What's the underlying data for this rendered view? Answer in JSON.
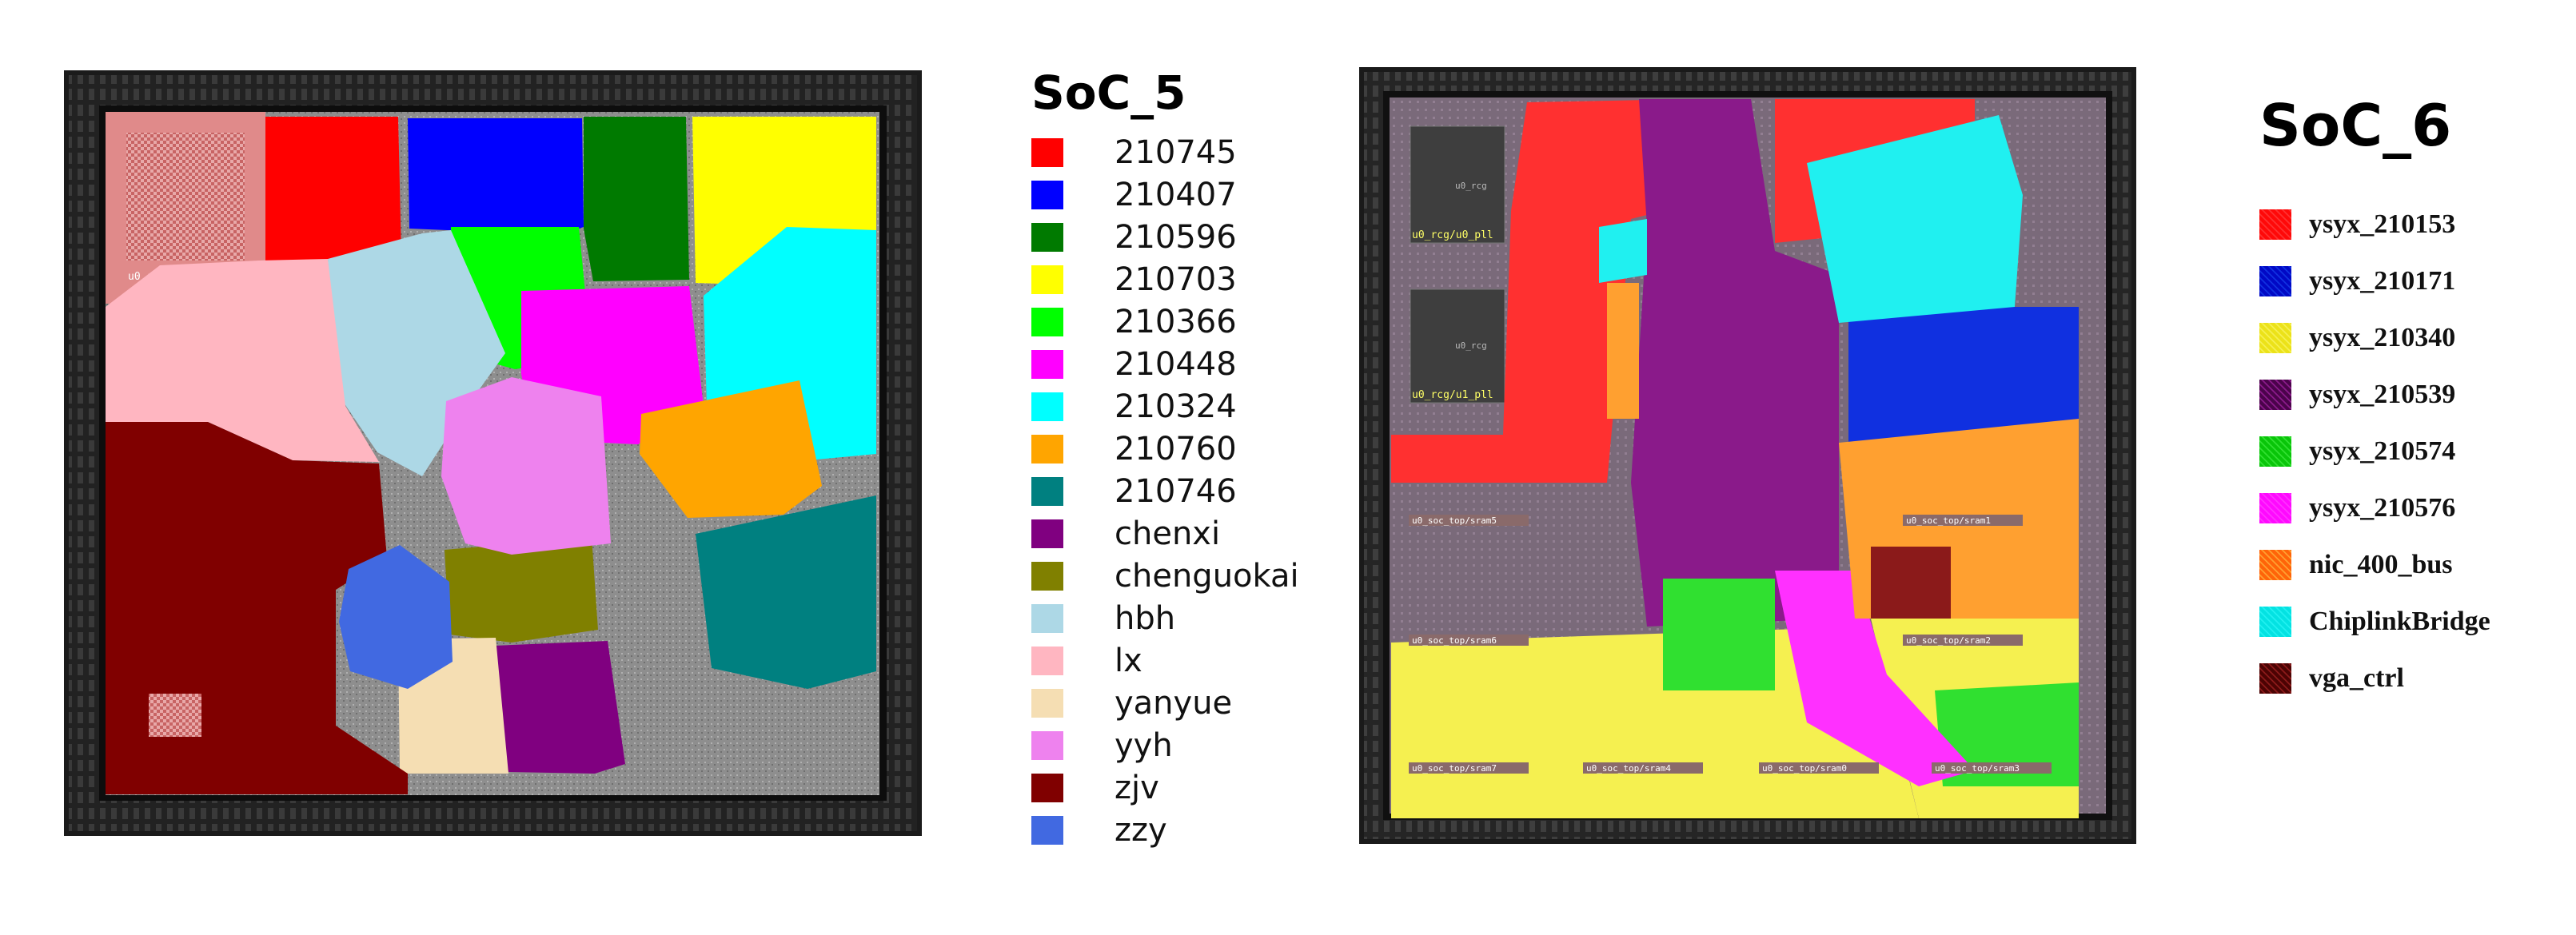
{
  "soc5": {
    "title": "SoC_5",
    "pll_label": "u0_rcg/u0_pll",
    "legend": [
      {
        "label": "210745",
        "color": "#ff0000"
      },
      {
        "label": "210407",
        "color": "#0000ff"
      },
      {
        "label": "210596",
        "color": "#007a00"
      },
      {
        "label": "210703",
        "color": "#ffff00"
      },
      {
        "label": "210366",
        "color": "#00ff00"
      },
      {
        "label": "210448",
        "color": "#ff00ff"
      },
      {
        "label": "210324",
        "color": "#00ffff"
      },
      {
        "label": "210760",
        "color": "#ffa500"
      },
      {
        "label": "210746",
        "color": "#008080"
      },
      {
        "label": "chenxi",
        "color": "#800080"
      },
      {
        "label": "chenguokai",
        "color": "#808000"
      },
      {
        "label": "hbh",
        "color": "#add8e6"
      },
      {
        "label": "lx",
        "color": "#ffb6c1"
      },
      {
        "label": "yanyue",
        "color": "#f5deb3"
      },
      {
        "label": "yyh",
        "color": "#ee82ee"
      },
      {
        "label": "zjv",
        "color": "#800000"
      },
      {
        "label": "zzy",
        "color": "#4169e1"
      }
    ]
  },
  "soc6": {
    "title": "SoC_6",
    "macro_labels": {
      "pll0_top": "u0_rcg",
      "pll0": "u0_rcg/u0_pll",
      "pll1_top": "u0_rcg",
      "pll1": "u0_rcg/u1_pll",
      "sram5": "u0_soc_top/sram5",
      "sram1": "u0_soc_top/sram1",
      "sram6": "u0_soc_top/sram6",
      "sram2": "u0_soc_top/sram2",
      "sram7": "u0_soc_top/sram7",
      "sram4": "u0_soc_top/sram4",
      "sram0": "u0_soc_top/sram0",
      "sram3": "u0_soc_top/sram3"
    },
    "legend": [
      {
        "label": "ysyx_210153",
        "color": "#ff3030"
      },
      {
        "label": "ysyx_210171",
        "color": "#1030e0"
      },
      {
        "label": "ysyx_210340",
        "color": "#f5f050"
      },
      {
        "label": "ysyx_210539",
        "color": "#8a1a8a"
      },
      {
        "label": "ysyx_210574",
        "color": "#30e030"
      },
      {
        "label": "ysyx_210576",
        "color": "#ff30ff"
      },
      {
        "label": "nic_400_bus",
        "color": "#ffa030"
      },
      {
        "label": "ChiplinkBridge",
        "color": "#20f0f0"
      },
      {
        "label": "vga_ctrl",
        "color": "#8b1a1a"
      }
    ]
  }
}
